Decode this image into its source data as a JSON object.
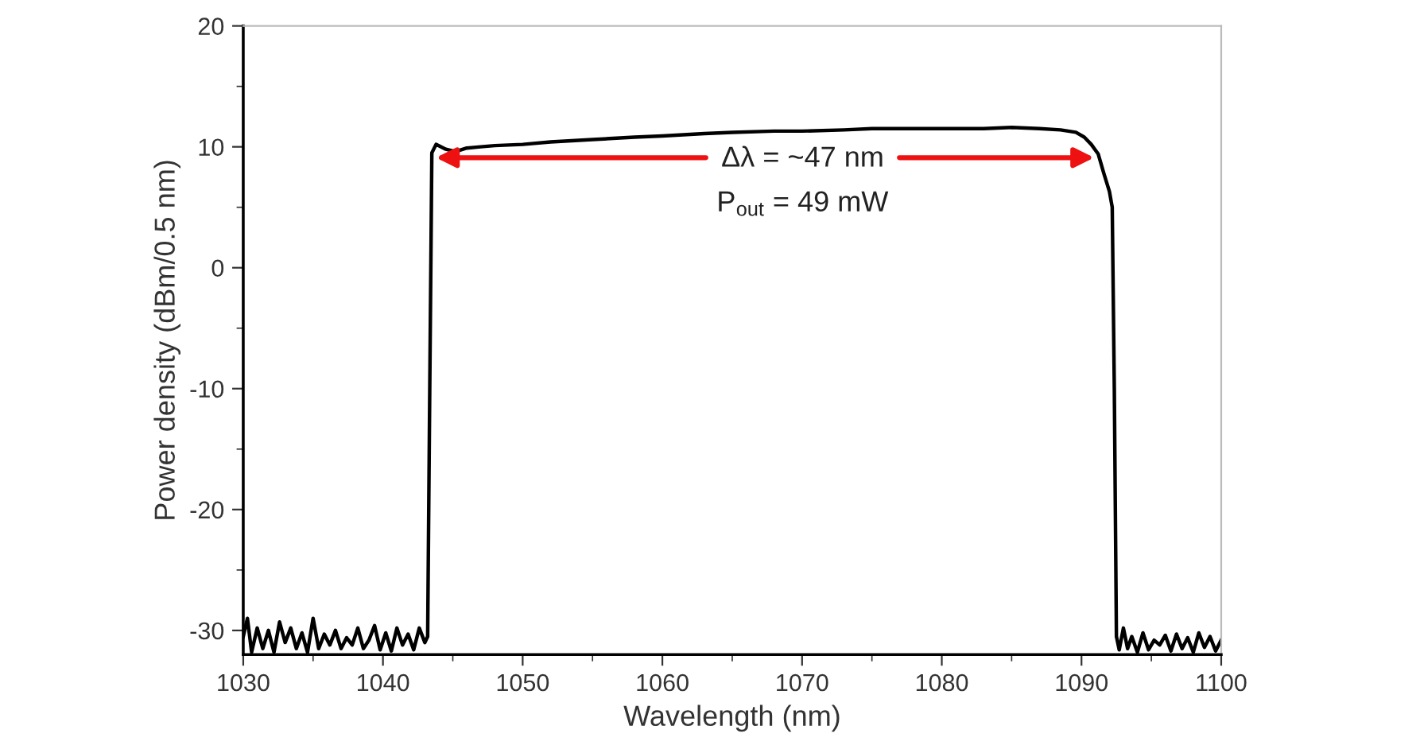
{
  "chart_data": {
    "type": "line",
    "xlabel": "Wavelength (nm)",
    "ylabel": "Power density (dBm/0.5 nm)",
    "xlim": [
      1030,
      1100
    ],
    "xticks": [
      1030,
      1040,
      1050,
      1060,
      1070,
      1080,
      1090,
      1100
    ],
    "ylim": [
      -32,
      20
    ],
    "yticks": [
      -30,
      -20,
      -10,
      0,
      10,
      20
    ],
    "grid": false,
    "series": [
      {
        "color": "#000000",
        "x": [
          1030,
          1030.3,
          1030.6,
          1031,
          1031.4,
          1031.8,
          1032.2,
          1032.6,
          1033,
          1033.4,
          1033.8,
          1034.2,
          1034.6,
          1035,
          1035.4,
          1035.8,
          1036.2,
          1036.6,
          1037,
          1037.4,
          1037.8,
          1038.2,
          1038.6,
          1039,
          1039.4,
          1039.8,
          1040.2,
          1040.6,
          1041,
          1041.4,
          1041.8,
          1042.2,
          1042.6,
          1043,
          1043.2,
          1043.35,
          1043.5,
          1043.8,
          1044.5,
          1045.2,
          1046,
          1047,
          1048,
          1050,
          1052,
          1055,
          1058,
          1060,
          1063,
          1065,
          1068,
          1070,
          1073,
          1075,
          1078,
          1080,
          1083,
          1085,
          1087,
          1088.5,
          1089.6,
          1090.2,
          1090.7,
          1091.2,
          1091.6,
          1092,
          1092.2,
          1092.35,
          1092.5,
          1092.7,
          1093,
          1093.3,
          1093.6,
          1094,
          1094.4,
          1094.8,
          1095.2,
          1095.6,
          1096,
          1096.4,
          1096.8,
          1097.2,
          1097.6,
          1098,
          1098.4,
          1098.8,
          1099.2,
          1099.6,
          1100
        ],
        "values": [
          -30.5,
          -29,
          -31.8,
          -29.8,
          -31.5,
          -30,
          -31.8,
          -29.3,
          -31,
          -29.8,
          -31.5,
          -30.2,
          -31.8,
          -29,
          -31.5,
          -30.3,
          -31.2,
          -30,
          -31.5,
          -30.6,
          -31.2,
          -29.8,
          -31.5,
          -30.8,
          -29.6,
          -31.6,
          -30.2,
          -31.7,
          -29.8,
          -31.2,
          -30.3,
          -31.6,
          -29.8,
          -31,
          -30.5,
          -10,
          9.5,
          10.2,
          9.8,
          9.6,
          9.9,
          10,
          10.1,
          10.2,
          10.4,
          10.6,
          10.8,
          10.9,
          11.1,
          11.2,
          11.3,
          11.3,
          11.4,
          11.5,
          11.5,
          11.5,
          11.5,
          11.6,
          11.5,
          11.4,
          11.2,
          10.8,
          10.2,
          9.4,
          7.8,
          6.3,
          5,
          -10,
          -30.5,
          -31.6,
          -29.8,
          -31.5,
          -30.5,
          -31.8,
          -30.2,
          -31.6,
          -30.8,
          -31.2,
          -30.4,
          -31.7,
          -30.3,
          -31.5,
          -30.6,
          -31.8,
          -30.2,
          -31.4,
          -30.5,
          -31.7,
          -30.8
        ]
      }
    ],
    "annotations": [
      {
        "text": "Δλ = ~47 nm",
        "x": 1043.8,
        "y": 9.1
      },
      {
        "text": "P$_{out}$ = 49 mW",
        "x": 1090.9,
        "y": 9.1
      }
    ]
  }
}
